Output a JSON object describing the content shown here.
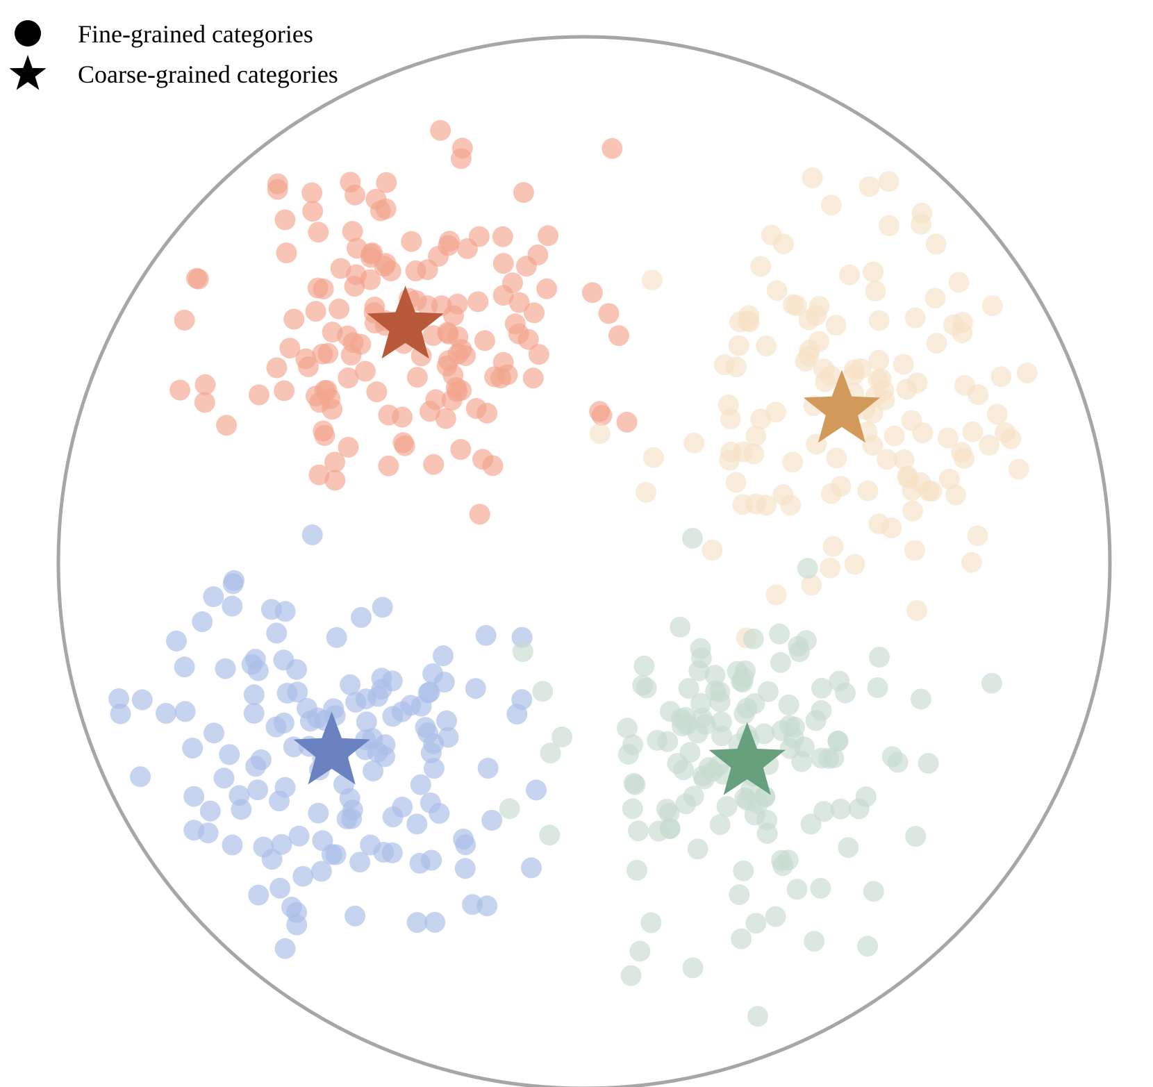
{
  "legend": {
    "items": [
      {
        "marker": "circle",
        "label": "Fine-grained categories"
      },
      {
        "marker": "star",
        "label": "Coarse-grained categories"
      }
    ]
  },
  "boundary": {
    "shape": "circle",
    "stroke_color": "#a6a6a6"
  },
  "chart_data": {
    "type": "scatter",
    "x_range": [
      -1,
      1
    ],
    "y_range": [
      -1,
      1
    ],
    "grid": false,
    "legend_placement": "top-left",
    "groups": [
      {
        "color": "#f2a58e",
        "star_color": "#b85a3a",
        "center": [
          -0.34,
          0.45
        ],
        "spread": 0.2,
        "count": 150,
        "seed": 11
      },
      {
        "color": "#f7e2c6",
        "star_color": "#d29a5a",
        "center": [
          0.49,
          0.29
        ],
        "spread": 0.2,
        "count": 130,
        "seed": 23
      },
      {
        "color": "#a9bde6",
        "star_color": "#6b82c0",
        "center": [
          -0.48,
          -0.36
        ],
        "spread": 0.2,
        "count": 140,
        "seed": 37
      },
      {
        "color": "#c7dccf",
        "star_color": "#66a07c",
        "center": [
          0.31,
          -0.38
        ],
        "spread": 0.2,
        "count": 140,
        "seed": 53
      }
    ]
  }
}
